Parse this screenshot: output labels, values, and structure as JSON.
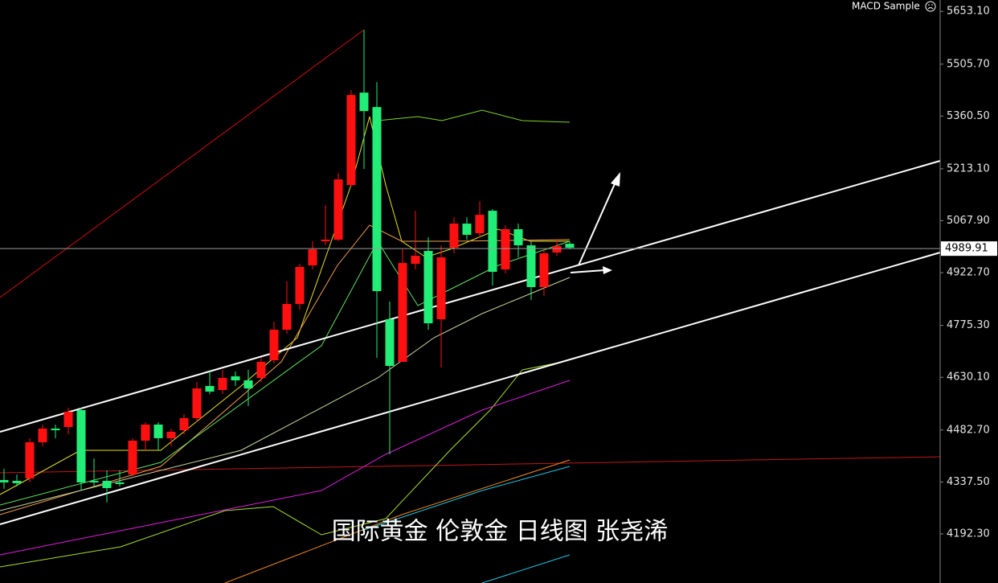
{
  "chart_data": {
    "type": "candlestick",
    "header": "MACD Sample",
    "annotation": "国际黄金 伦敦金 日线图 张尧浠",
    "up_color": "#ff1010",
    "down_color": "#22ee77",
    "ylim": [
      4055,
      5685
    ],
    "yticks": [
      {
        "value": 5653.1,
        "label": "5653.10"
      },
      {
        "value": 5505.7,
        "label": "5505.70"
      },
      {
        "value": 5360.5,
        "label": "5360.50"
      },
      {
        "value": 5213.1,
        "label": "5213.10"
      },
      {
        "value": 5067.9,
        "label": "5067.90"
      },
      {
        "value": 4922.7,
        "label": "4922.70"
      },
      {
        "value": 4775.3,
        "label": "4775.30"
      },
      {
        "value": 4630.1,
        "label": "4630.10"
      },
      {
        "value": 4482.7,
        "label": "4482.70"
      },
      {
        "value": 4337.5,
        "label": "4337.50"
      },
      {
        "value": 4192.3,
        "label": "4192.30"
      }
    ],
    "last_price": 4989.91,
    "open": [
      4342.9,
      4340.7,
      4347.4,
      4448.5,
      4486.7,
      4491.2,
      4538.4,
      4340.7,
      4340.7,
      4336.2,
      4358.6,
      4453,
      4498,
      4459.8,
      4482.2,
      4516,
      4605.8,
      4594.6,
      4632.8,
      4621.6,
      4628.3,
      4677.8,
      4763.2,
      4835.1,
      4943,
      5010.4,
      5014.9,
      5167.7,
      5426.1,
      5385.7,
      4792.4,
      4673.3,
      4947.5,
      4983.4,
      4792.4,
      4992.4,
      5059.8,
      5032.9,
      5095.8,
      4931.7,
      5044.1,
      4999.1,
      4882.3,
      4978.9,
      5003.6
    ],
    "high": [
      4374.4,
      4358.6,
      4459.8,
      4498,
      4498,
      4545.2,
      4545.2,
      4403.6,
      4369.9,
      4369.9,
      4459.8,
      4504.7,
      4504.7,
      4486.7,
      4527.2,
      4617.1,
      4646.3,
      4650.8,
      4646.3,
      4650.8,
      4684.5,
      4785.7,
      4898,
      4947.5,
      5010.4,
      5111.5,
      5201.4,
      5432.9,
      5601.4,
      5455.4,
      4841.8,
      4987.9,
      5095.8,
      5021.6,
      4999.1,
      5077.8,
      5077.8,
      5122.7,
      5100.3,
      5055.3,
      5059.8,
      5010.4,
      4987.9,
      5014.9,
      5010.4
    ],
    "low": [
      4318.2,
      4325,
      4336.2,
      4437.3,
      4459.8,
      4471,
      4313.7,
      4324.9,
      4280,
      4324.9,
      4354.1,
      4426.1,
      4426.1,
      4437.3,
      4471,
      4504.7,
      4583.4,
      4583.4,
      4605.8,
      4549.7,
      4617.1,
      4668.8,
      4751.9,
      4819.4,
      4931.7,
      4999.1,
      5010.4,
      5163.2,
      5212.7,
      4684.5,
      4414.8,
      4673.3,
      4931.7,
      4763.2,
      4657.5,
      4976.7,
      5014.9,
      5021.6,
      4886.8,
      4920.5,
      4965.4,
      4846.3,
      4857.6,
      4969.9,
      4987.9
    ],
    "close": [
      4336.2,
      4333.9,
      4448.5,
      4486.7,
      4482.2,
      4533.9,
      4336.2,
      4336.2,
      4320.4,
      4331.7,
      4453,
      4498,
      4459.8,
      4477.7,
      4516,
      4599.1,
      4590.1,
      4628.3,
      4621.6,
      4599.1,
      4673.3,
      4763.2,
      4835.1,
      4938.5,
      4987.9,
      5014.9,
      5183.4,
      5419.4,
      5374.5,
      4871,
      4662,
      4949.7,
      4969.9,
      4781.1,
      4965.4,
      5059.8,
      5028.4,
      5084.5,
      4925,
      5044.1,
      4999.1,
      4882.3,
      4976.7,
      4996.9,
      4992.4
    ]
  }
}
